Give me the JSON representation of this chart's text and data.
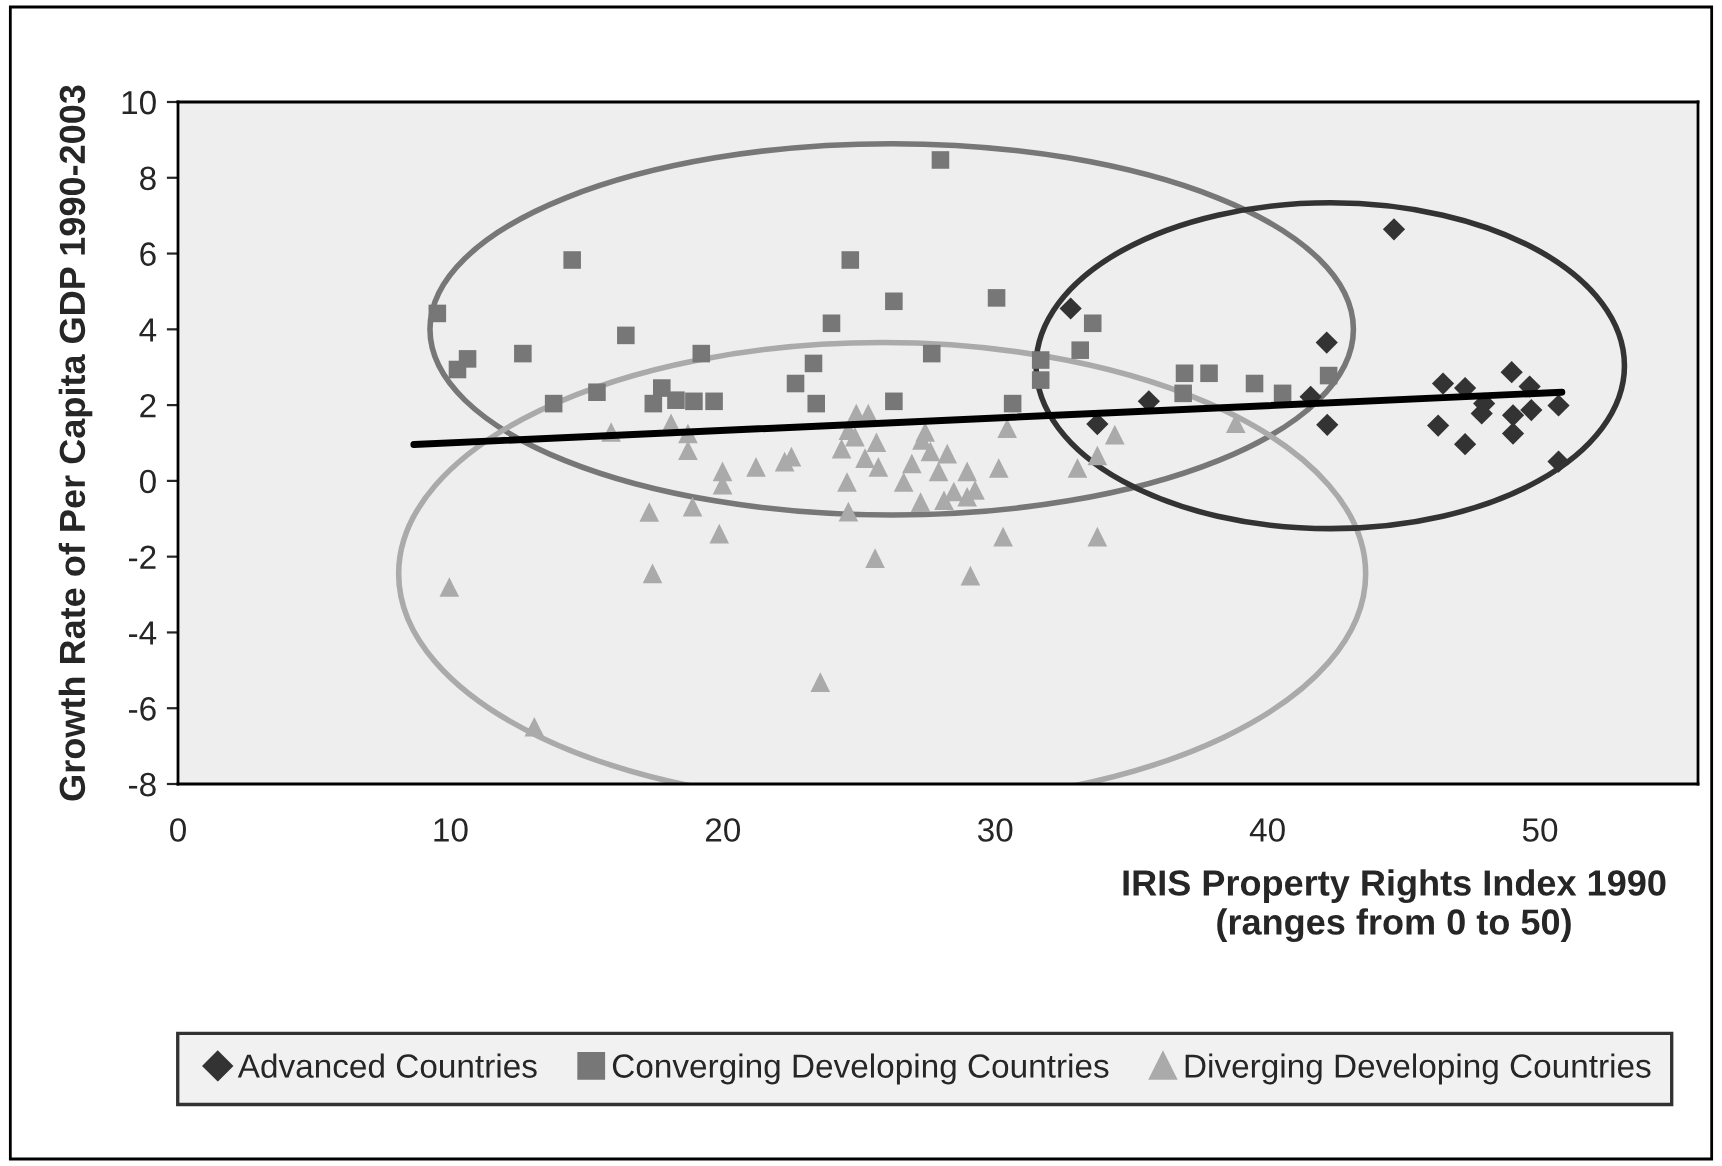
{
  "chart_data": {
    "type": "scatter",
    "xlabel": "IRIS Property Rights Index 1990\n(ranges from 0 to 50)",
    "ylabel": "Growth Rate of Per Capita GDP 1990-2003",
    "xlim": [
      0,
      55.8
    ],
    "ylim": [
      -8,
      10
    ],
    "xticks": [
      0,
      10,
      20,
      30,
      40,
      50
    ],
    "yticks": [
      -8,
      -6,
      -4,
      -2,
      0,
      2,
      4,
      6,
      8,
      10
    ],
    "grid": false,
    "legend": "bottom",
    "series": [
      {
        "name": "Advanced Countries",
        "color": "#333333",
        "marker": "diamond",
        "x": [
          32.77,
          35.64,
          33.75,
          44.64,
          42.17,
          41.58,
          42.19,
          46.44,
          47.25,
          46.26,
          47.25,
          47.86,
          47.95,
          48.96,
          49.62,
          49.01,
          49.68,
          49.01,
          50.68,
          50.68
        ],
        "values": [
          4.55,
          2.1,
          1.5,
          6.64,
          3.65,
          2.22,
          1.48,
          2.57,
          2.45,
          1.46,
          0.97,
          1.78,
          2.04,
          2.87,
          2.49,
          1.73,
          1.87,
          1.25,
          1.99,
          0.51
        ]
      },
      {
        "name": "Converging Developing Countries",
        "color": "#777777",
        "marker": "square",
        "x": [
          14.47,
          9.52,
          10.63,
          10.26,
          12.66,
          16.44,
          13.79,
          15.38,
          17.76,
          17.45,
          18.28,
          27.99,
          24.68,
          26.28,
          30.05,
          23.99,
          19.21,
          23.33,
          27.67,
          22.67,
          18.94,
          19.68,
          23.43,
          26.28,
          30.64,
          33.58,
          33.12,
          31.67,
          31.67,
          36.95,
          37.85,
          36.9,
          39.52,
          40.55,
          42.24
        ],
        "values": [
          5.83,
          4.42,
          3.22,
          2.94,
          3.36,
          3.84,
          2.04,
          2.34,
          2.45,
          2.04,
          2.13,
          8.47,
          5.83,
          4.74,
          4.83,
          4.16,
          3.36,
          3.1,
          3.36,
          2.57,
          2.1,
          2.1,
          2.04,
          2.1,
          2.04,
          4.16,
          3.45,
          3.19,
          2.66,
          2.84,
          2.84,
          2.31,
          2.57,
          2.31,
          2.78
        ]
      },
      {
        "name": "Diverging Developing Countries",
        "color": "#aaaaaa",
        "marker": "triangle",
        "x": [
          15.9,
          18.1,
          17.3,
          17.42,
          9.96,
          13.08,
          18.72,
          18.72,
          19.99,
          19.99,
          21.22,
          22.27,
          22.52,
          18.89,
          19.87,
          24.9,
          25.34,
          24.61,
          24.85,
          24.36,
          25.64,
          25.22,
          25.71,
          24.56,
          24.61,
          25.59,
          23.58,
          27.43,
          27.31,
          27.62,
          28.24,
          26.94,
          27.92,
          28.97,
          26.64,
          28.48,
          29.26,
          28.97,
          27.26,
          28.12,
          30.13,
          30.44,
          30.29,
          29.09,
          33.02,
          33.75,
          33.75,
          34.39,
          38.83
        ],
        "values": [
          1.29,
          1.52,
          -0.82,
          -2.44,
          -2.8,
          -6.49,
          1.25,
          0.81,
          0.25,
          -0.1,
          0.37,
          0.51,
          0.64,
          -0.68,
          -1.39,
          1.78,
          1.78,
          1.34,
          1.17,
          0.85,
          1.02,
          0.6,
          0.37,
          -0.03,
          -0.81,
          -2.04,
          -5.31,
          1.29,
          1.08,
          0.78,
          0.72,
          0.46,
          0.25,
          0.25,
          -0.03,
          -0.28,
          -0.24,
          -0.42,
          -0.56,
          -0.51,
          0.34,
          1.39,
          -1.47,
          -2.5,
          0.34,
          -1.47,
          0.67,
          1.22,
          1.52
        ]
      },
      {
        "type": "line",
        "color": "#000000",
        "marker": "none",
        "line_style": "solid",
        "x": [
          8.66,
          50.8
        ],
        "values": [
          0.96,
          2.34
        ]
      }
    ]
  }
}
